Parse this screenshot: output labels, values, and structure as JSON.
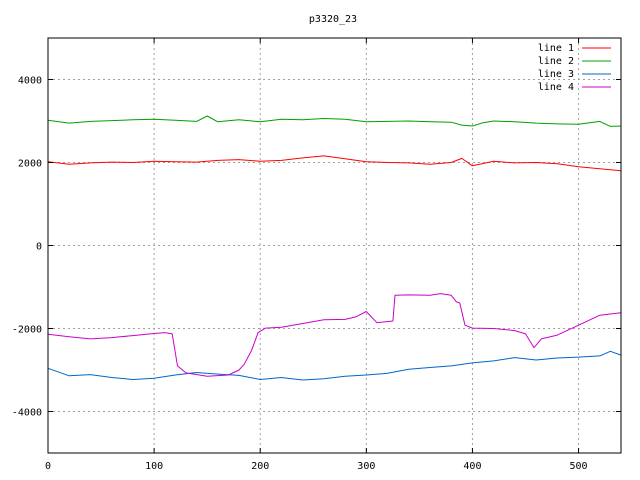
{
  "chart_data": {
    "type": "line",
    "title": "p3320_23",
    "xlabel": "",
    "ylabel": "",
    "xlim": [
      0,
      540
    ],
    "ylim": [
      -5000,
      5000
    ],
    "x_ticks": [
      0,
      100,
      200,
      300,
      400,
      500
    ],
    "y_ticks": [
      -4000,
      -2000,
      0,
      2000,
      4000
    ],
    "grid": true,
    "legend_position": "top-right",
    "series": [
      {
        "name": "line 1",
        "color": "#ff0000",
        "points": [
          [
            0,
            2020
          ],
          [
            20,
            1960
          ],
          [
            40,
            1990
          ],
          [
            60,
            2010
          ],
          [
            80,
            2000
          ],
          [
            100,
            2030
          ],
          [
            120,
            2020
          ],
          [
            140,
            2010
          ],
          [
            160,
            2050
          ],
          [
            180,
            2070
          ],
          [
            200,
            2030
          ],
          [
            220,
            2050
          ],
          [
            240,
            2110
          ],
          [
            260,
            2160
          ],
          [
            280,
            2090
          ],
          [
            300,
            2020
          ],
          [
            320,
            2000
          ],
          [
            340,
            1990
          ],
          [
            360,
            1960
          ],
          [
            380,
            2000
          ],
          [
            390,
            2100
          ],
          [
            400,
            1920
          ],
          [
            420,
            2030
          ],
          [
            440,
            1990
          ],
          [
            460,
            2000
          ],
          [
            480,
            1970
          ],
          [
            500,
            1900
          ],
          [
            520,
            1850
          ],
          [
            540,
            1800
          ]
        ]
      },
      {
        "name": "line 2",
        "color": "#00a000",
        "points": [
          [
            0,
            3020
          ],
          [
            20,
            2950
          ],
          [
            40,
            2990
          ],
          [
            60,
            3010
          ],
          [
            80,
            3030
          ],
          [
            100,
            3040
          ],
          [
            120,
            3020
          ],
          [
            140,
            2990
          ],
          [
            150,
            3120
          ],
          [
            160,
            2980
          ],
          [
            180,
            3030
          ],
          [
            200,
            2980
          ],
          [
            220,
            3040
          ],
          [
            240,
            3030
          ],
          [
            260,
            3060
          ],
          [
            280,
            3040
          ],
          [
            300,
            2980
          ],
          [
            320,
            2990
          ],
          [
            340,
            3000
          ],
          [
            360,
            2980
          ],
          [
            380,
            2970
          ],
          [
            390,
            2900
          ],
          [
            400,
            2880
          ],
          [
            410,
            2960
          ],
          [
            420,
            3000
          ],
          [
            440,
            2980
          ],
          [
            460,
            2950
          ],
          [
            480,
            2930
          ],
          [
            500,
            2920
          ],
          [
            520,
            2990
          ],
          [
            530,
            2870
          ],
          [
            540,
            2880
          ]
        ]
      },
      {
        "name": "line 3",
        "color": "#0066cc",
        "points": [
          [
            0,
            -2960
          ],
          [
            20,
            -3140
          ],
          [
            40,
            -3110
          ],
          [
            60,
            -3180
          ],
          [
            80,
            -3230
          ],
          [
            100,
            -3200
          ],
          [
            120,
            -3120
          ],
          [
            140,
            -3060
          ],
          [
            160,
            -3100
          ],
          [
            180,
            -3130
          ],
          [
            200,
            -3230
          ],
          [
            220,
            -3180
          ],
          [
            240,
            -3240
          ],
          [
            260,
            -3210
          ],
          [
            280,
            -3150
          ],
          [
            300,
            -3120
          ],
          [
            320,
            -3080
          ],
          [
            340,
            -2980
          ],
          [
            360,
            -2940
          ],
          [
            380,
            -2900
          ],
          [
            400,
            -2830
          ],
          [
            420,
            -2780
          ],
          [
            440,
            -2700
          ],
          [
            460,
            -2760
          ],
          [
            480,
            -2710
          ],
          [
            500,
            -2690
          ],
          [
            520,
            -2660
          ],
          [
            530,
            -2550
          ],
          [
            540,
            -2640
          ]
        ]
      },
      {
        "name": "line 4",
        "color": "#cc00cc",
        "points": [
          [
            0,
            -2140
          ],
          [
            20,
            -2200
          ],
          [
            40,
            -2250
          ],
          [
            60,
            -2220
          ],
          [
            80,
            -2170
          ],
          [
            100,
            -2120
          ],
          [
            110,
            -2100
          ],
          [
            117,
            -2130
          ],
          [
            122,
            -2900
          ],
          [
            130,
            -3070
          ],
          [
            150,
            -3150
          ],
          [
            170,
            -3120
          ],
          [
            180,
            -3000
          ],
          [
            185,
            -2860
          ],
          [
            192,
            -2520
          ],
          [
            198,
            -2100
          ],
          [
            205,
            -1990
          ],
          [
            220,
            -1970
          ],
          [
            240,
            -1880
          ],
          [
            260,
            -1790
          ],
          [
            280,
            -1780
          ],
          [
            290,
            -1720
          ],
          [
            300,
            -1590
          ],
          [
            310,
            -1860
          ],
          [
            325,
            -1820
          ],
          [
            327,
            -1200
          ],
          [
            340,
            -1190
          ],
          [
            360,
            -1200
          ],
          [
            370,
            -1160
          ],
          [
            380,
            -1200
          ],
          [
            385,
            -1360
          ],
          [
            388,
            -1380
          ],
          [
            393,
            -1920
          ],
          [
            400,
            -1990
          ],
          [
            420,
            -2000
          ],
          [
            440,
            -2050
          ],
          [
            450,
            -2130
          ],
          [
            458,
            -2460
          ],
          [
            465,
            -2250
          ],
          [
            480,
            -2160
          ],
          [
            500,
            -1920
          ],
          [
            520,
            -1680
          ],
          [
            540,
            -1620
          ]
        ]
      }
    ]
  }
}
